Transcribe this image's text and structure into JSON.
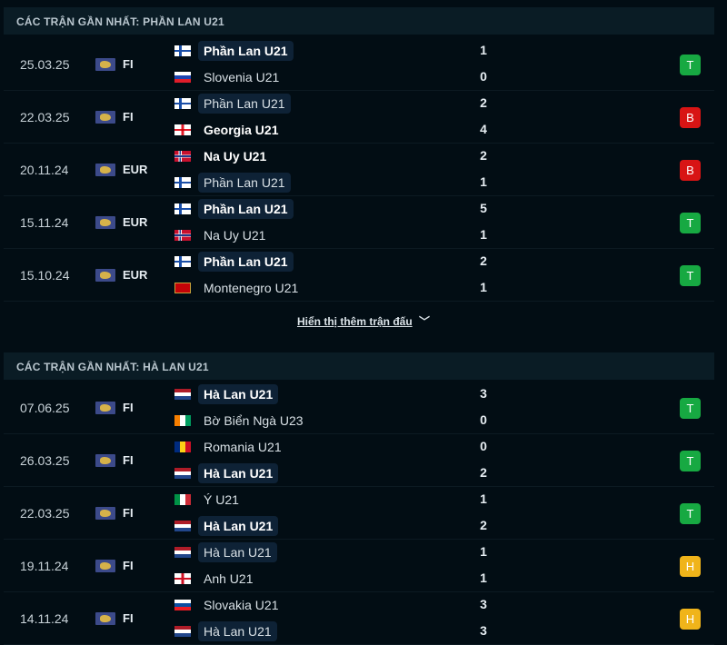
{
  "sections": [
    {
      "title": "CÁC TRẬN GẦN NHẤT: PHẦN LAN U21",
      "matches": [
        {
          "date": "25.03.25",
          "competition": "FI",
          "home": {
            "name": "Phần Lan U21",
            "flag": "fi",
            "score": "1",
            "win": true,
            "highlight": true
          },
          "away": {
            "name": "Slovenia U21",
            "flag": "si",
            "score": "0",
            "win": false,
            "highlight": false
          },
          "result": "T"
        },
        {
          "date": "22.03.25",
          "competition": "FI",
          "home": {
            "name": "Phần Lan U21",
            "flag": "fi",
            "score": "2",
            "win": false,
            "highlight": true
          },
          "away": {
            "name": "Georgia U21",
            "flag": "ge",
            "score": "4",
            "win": true,
            "highlight": false
          },
          "result": "B"
        },
        {
          "date": "20.11.24",
          "competition": "EUR",
          "home": {
            "name": "Na Uy U21",
            "flag": "no",
            "score": "2",
            "win": true,
            "highlight": false
          },
          "away": {
            "name": "Phần Lan U21",
            "flag": "fi",
            "score": "1",
            "win": false,
            "highlight": true
          },
          "result": "B"
        },
        {
          "date": "15.11.24",
          "competition": "EUR",
          "home": {
            "name": "Phần Lan U21",
            "flag": "fi",
            "score": "5",
            "win": true,
            "highlight": true
          },
          "away": {
            "name": "Na Uy U21",
            "flag": "no",
            "score": "1",
            "win": false,
            "highlight": false
          },
          "result": "T"
        },
        {
          "date": "15.10.24",
          "competition": "EUR",
          "home": {
            "name": "Phần Lan U21",
            "flag": "fi",
            "score": "2",
            "win": true,
            "highlight": true
          },
          "away": {
            "name": "Montenegro U21",
            "flag": "me",
            "score": "1",
            "win": false,
            "highlight": false
          },
          "result": "T"
        }
      ],
      "show_more": "Hiển thị thêm trận đấu"
    },
    {
      "title": "CÁC TRẬN GẦN NHẤT: HÀ LAN U21",
      "matches": [
        {
          "date": "07.06.25",
          "competition": "FI",
          "home": {
            "name": "Hà Lan U21",
            "flag": "nl",
            "score": "3",
            "win": true,
            "highlight": true
          },
          "away": {
            "name": "Bờ Biển Ngà U23",
            "flag": "ci",
            "score": "0",
            "win": false,
            "highlight": false
          },
          "result": "T"
        },
        {
          "date": "26.03.25",
          "competition": "FI",
          "home": {
            "name": "Romania U21",
            "flag": "ro",
            "score": "0",
            "win": false,
            "highlight": false
          },
          "away": {
            "name": "Hà Lan U21",
            "flag": "nl",
            "score": "2",
            "win": true,
            "highlight": true
          },
          "result": "T"
        },
        {
          "date": "22.03.25",
          "competition": "FI",
          "home": {
            "name": "Ý U21",
            "flag": "it",
            "score": "1",
            "win": false,
            "highlight": false
          },
          "away": {
            "name": "Hà Lan U21",
            "flag": "nl",
            "score": "2",
            "win": true,
            "highlight": true
          },
          "result": "T"
        },
        {
          "date": "19.11.24",
          "competition": "FI",
          "home": {
            "name": "Hà Lan U21",
            "flag": "nl",
            "score": "1",
            "win": false,
            "highlight": true
          },
          "away": {
            "name": "Anh U21",
            "flag": "en",
            "score": "1",
            "win": false,
            "highlight": false
          },
          "result": "H"
        },
        {
          "date": "14.11.24",
          "competition": "FI",
          "home": {
            "name": "Slovakia U21",
            "flag": "sk",
            "score": "3",
            "win": false,
            "highlight": false
          },
          "away": {
            "name": "Hà Lan U21",
            "flag": "nl",
            "score": "3",
            "win": false,
            "highlight": true
          },
          "result": "H"
        }
      ]
    }
  ],
  "result_colors": {
    "T": "#17a942",
    "B": "#d81414",
    "H": "#f0b41a"
  }
}
